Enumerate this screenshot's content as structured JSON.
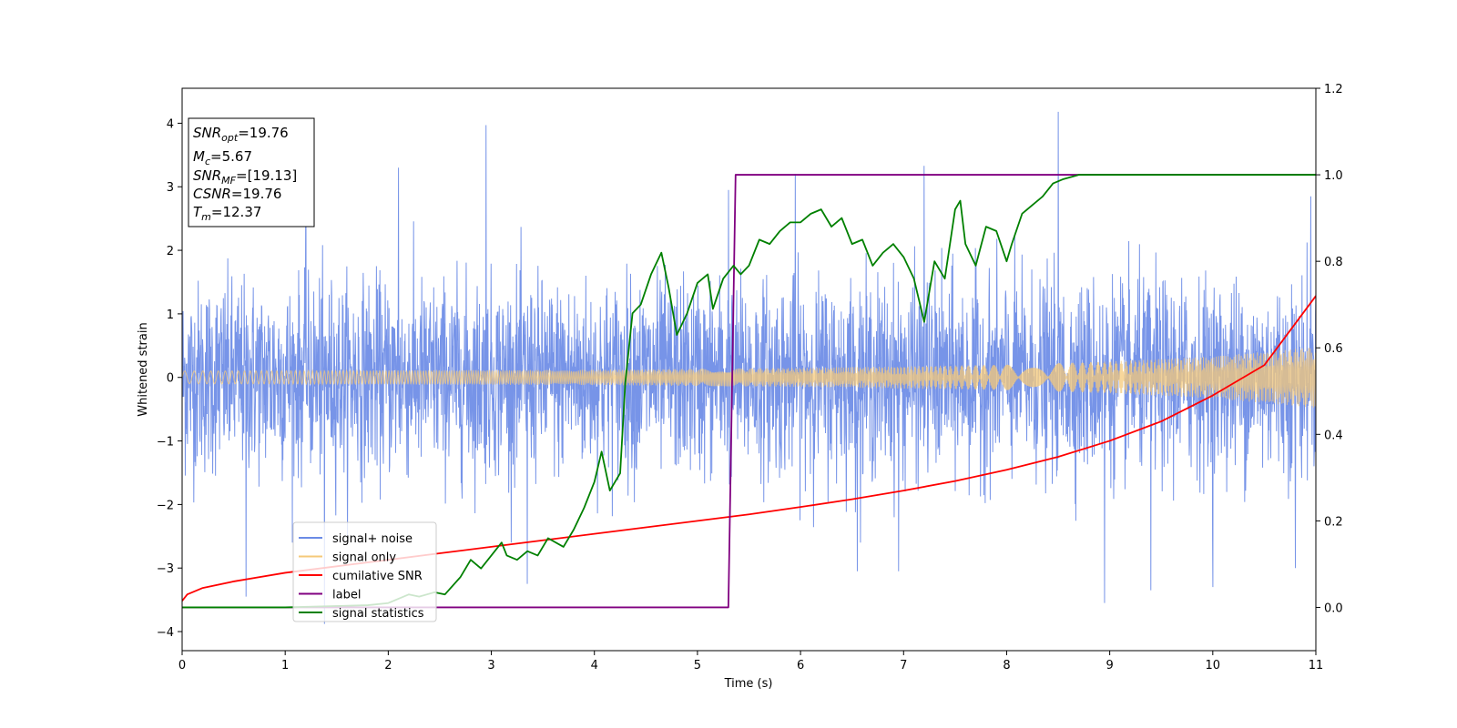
{
  "chart_data": {
    "type": "line",
    "xlabel": "Time (s)",
    "ylabel": "Whitened strain",
    "xlim": [
      0,
      11
    ],
    "ylim_left": [
      -4.3,
      4.55
    ],
    "ylim_right": [
      -0.1,
      1.2
    ],
    "x_ticks": [
      0,
      1,
      2,
      3,
      4,
      5,
      6,
      7,
      8,
      9,
      10,
      11
    ],
    "y_ticks_left": [
      -4,
      -3,
      -2,
      -1,
      0,
      1,
      2,
      3,
      4
    ],
    "y_ticks_right": [
      0.0,
      0.2,
      0.4,
      0.6,
      0.8,
      1.0,
      1.2
    ],
    "grid": false,
    "legend_position": "lower-left",
    "legend": [
      {
        "label": "signal+ noise",
        "color": "#6b8be6"
      },
      {
        "label": "signal only",
        "color": "#f5c97a"
      },
      {
        "label": "cumilative SNR",
        "color": "#ff0000"
      },
      {
        "label": "label",
        "color": "#800080"
      },
      {
        "label": "signal statistics",
        "color": "#008000"
      }
    ],
    "annotation": {
      "snr_opt": {
        "base": "SNR",
        "sub": "opt",
        "value": "=19.76"
      },
      "mc": {
        "base": "M",
        "sub": "c",
        "value": "=5.67"
      },
      "snr_mf": {
        "base": "SNR",
        "sub": "MF",
        "value": "=[19.13]"
      },
      "csnr": {
        "base": "CSNR",
        "sub": "",
        "value": "=19.76"
      },
      "tm": {
        "base": "T",
        "sub": "m",
        "value": "=12.37"
      }
    },
    "series": [
      {
        "name": "signal+ noise",
        "axis": "left",
        "color": "#6b8be6",
        "description_envelope": {
          "x": [
            0,
            11
          ],
          "typical_abs_max": 2.0,
          "peak_max": 4.18,
          "peak_min": -3.88
        },
        "spikes": [
          {
            "x": 0.62,
            "y": -3.45
          },
          {
            "x": 1.38,
            "y": -3.88
          },
          {
            "x": 1.2,
            "y": 3.5
          },
          {
            "x": 2.1,
            "y": 3.3
          },
          {
            "x": 2.95,
            "y": 3.97
          },
          {
            "x": 3.35,
            "y": -3.25
          },
          {
            "x": 5.3,
            "y": 2.95
          },
          {
            "x": 5.95,
            "y": 3.2
          },
          {
            "x": 6.55,
            "y": -3.05
          },
          {
            "x": 6.95,
            "y": -3.05
          },
          {
            "x": 7.2,
            "y": 3.33
          },
          {
            "x": 8.5,
            "y": 4.18
          },
          {
            "x": 8.95,
            "y": -3.55
          },
          {
            "x": 9.4,
            "y": -3.35
          },
          {
            "x": 10.0,
            "y": -3.3
          },
          {
            "x": 10.8,
            "y": -3.0
          },
          {
            "x": 10.95,
            "y": 2.85
          }
        ]
      },
      {
        "name": "signal only",
        "axis": "left",
        "color": "#f5c97a",
        "description_envelope": {
          "x": [
            0,
            2,
            4,
            6,
            8,
            9,
            10,
            11
          ],
          "amplitude": [
            0.1,
            0.11,
            0.12,
            0.15,
            0.2,
            0.25,
            0.33,
            0.48
          ]
        }
      },
      {
        "name": "cumilative SNR",
        "axis": "right",
        "color": "#ff0000",
        "x": [
          0,
          0.05,
          0.2,
          0.5,
          1,
          1.5,
          2,
          2.5,
          3,
          3.5,
          4,
          4.5,
          5,
          5.5,
          6,
          6.5,
          7,
          7.5,
          8,
          8.5,
          9,
          9.5,
          10,
          10.5,
          11
        ],
        "y": [
          0.015,
          0.03,
          0.045,
          0.06,
          0.08,
          0.095,
          0.11,
          0.125,
          0.14,
          0.155,
          0.17,
          0.185,
          0.2,
          0.215,
          0.232,
          0.25,
          0.27,
          0.292,
          0.318,
          0.348,
          0.385,
          0.43,
          0.49,
          0.56,
          0.72
        ]
      },
      {
        "name": "label",
        "axis": "right",
        "color": "#800080",
        "x": [
          0,
          5.3,
          5.37,
          11
        ],
        "y": [
          0.0,
          0.0,
          1.0,
          1.0
        ]
      },
      {
        "name": "signal statistics",
        "axis": "right",
        "color": "#008000",
        "x": [
          0,
          1.0,
          1.8,
          2.0,
          2.2,
          2.3,
          2.45,
          2.55,
          2.7,
          2.8,
          2.9,
          3.0,
          3.1,
          3.15,
          3.25,
          3.35,
          3.45,
          3.55,
          3.7,
          3.8,
          3.9,
          4.0,
          4.07,
          4.15,
          4.25,
          4.3,
          4.37,
          4.45,
          4.55,
          4.65,
          4.72,
          4.8,
          4.9,
          5.0,
          5.1,
          5.15,
          5.25,
          5.35,
          5.42,
          5.5,
          5.6,
          5.7,
          5.8,
          5.9,
          6.0,
          6.1,
          6.2,
          6.3,
          6.4,
          6.5,
          6.6,
          6.7,
          6.8,
          6.9,
          7.0,
          7.1,
          7.2,
          7.3,
          7.4,
          7.5,
          7.55,
          7.6,
          7.7,
          7.8,
          7.9,
          8.0,
          8.05,
          8.15,
          8.25,
          8.35,
          8.45,
          8.55,
          8.7,
          8.9,
          9.1,
          9.3,
          9.5,
          9.8,
          10.1,
          10.5,
          11.0
        ],
        "y": [
          0.0,
          0.0,
          0.005,
          0.01,
          0.03,
          0.025,
          0.035,
          0.03,
          0.07,
          0.11,
          0.09,
          0.12,
          0.15,
          0.12,
          0.11,
          0.13,
          0.12,
          0.16,
          0.14,
          0.18,
          0.23,
          0.29,
          0.36,
          0.27,
          0.31,
          0.52,
          0.68,
          0.7,
          0.77,
          0.82,
          0.74,
          0.63,
          0.68,
          0.75,
          0.77,
          0.69,
          0.76,
          0.79,
          0.77,
          0.79,
          0.85,
          0.84,
          0.87,
          0.89,
          0.89,
          0.91,
          0.92,
          0.88,
          0.9,
          0.84,
          0.85,
          0.79,
          0.82,
          0.84,
          0.81,
          0.76,
          0.66,
          0.8,
          0.76,
          0.92,
          0.94,
          0.84,
          0.79,
          0.88,
          0.87,
          0.8,
          0.84,
          0.91,
          0.93,
          0.95,
          0.98,
          0.99,
          1.0,
          1.0,
          1.0,
          1.0,
          1.0,
          1.0,
          1.0,
          1.0,
          1.0
        ]
      }
    ]
  }
}
